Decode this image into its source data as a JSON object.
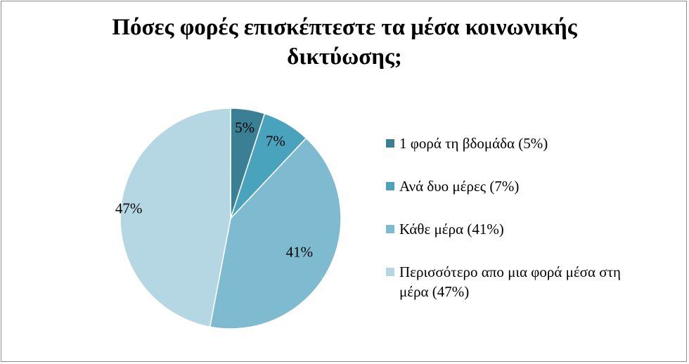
{
  "chart_data": {
    "type": "pie",
    "title_lines": [
      "Πόσες φορές επισκέπτεστε τα μέσα κοινωνικής",
      "δικτύωσης;"
    ],
    "slices": [
      {
        "name": "1 φορά τη βδομάδα (5%)",
        "value": 5,
        "label": "5%",
        "color": "#3b7f95"
      },
      {
        "name": "Ανά δυο μέρες (7%)",
        "value": 7,
        "label": "7%",
        "color": "#4aa3bd"
      },
      {
        "name": "Κάθε μέρα (41%)",
        "value": 41,
        "label": "41%",
        "color": "#7fbbd0"
      },
      {
        "name": "Περισσότερο απο μια φορά μέσα στη μέρα (47%)",
        "value": 47,
        "label": "47%",
        "color": "#b5d7e3"
      }
    ],
    "legend_position": "right"
  },
  "legend_lines": [
    [
      "1 φορά τη βδομάδα (5%)"
    ],
    [
      "Ανά δυο μέρες (7%)"
    ],
    [
      "Κάθε μέρα (41%)"
    ],
    [
      "Περισσότερο απο μια φορά μέσα στη",
      "μέρα (47%)"
    ]
  ]
}
